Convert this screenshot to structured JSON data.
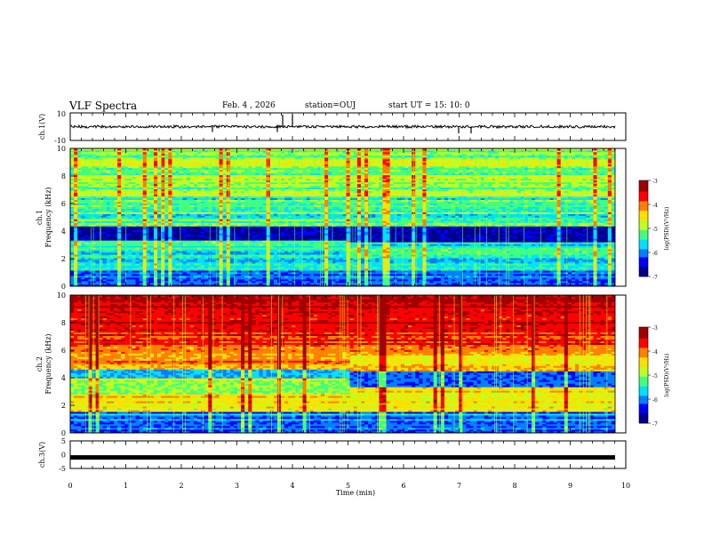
{
  "header": {
    "title": "VLF Spectra",
    "date": "Feb. 4 , 2026",
    "station": "station=OUJ",
    "start_ut": "start UT =  15: 10: 0"
  },
  "colors": {
    "waveform": "#000000",
    "colormap": [
      "#00008f",
      "#0000ff",
      "#0080ff",
      "#00e0ff",
      "#40ff80",
      "#c0ff20",
      "#ffe000",
      "#ff8000",
      "#ff0000",
      "#a00000"
    ]
  },
  "chart_data": [
    {
      "type": "line",
      "ylabel": "ch.1(V)",
      "ylim": [
        -10,
        10
      ],
      "yticks": [
        "10",
        "-10"
      ],
      "description_level": 0
    },
    {
      "type": "heatmap",
      "ylabel": "ch.1\nFrequency (kHz)",
      "xlim": [
        0,
        10
      ],
      "ylim": [
        0,
        10
      ],
      "yticks": [
        "0",
        "2",
        "4",
        "6",
        "8",
        "10"
      ],
      "colorbar": {
        "label": "log(PSD)(V²/Hz)",
        "ticks": [
          "-3",
          "-4",
          "-5",
          "-6",
          "-7"
        ],
        "range": [
          -7,
          -3
        ]
      }
    },
    {
      "type": "heatmap",
      "ylabel": "ch.2\nFrequency (kHz)",
      "xlim": [
        0,
        10
      ],
      "ylim": [
        0,
        10
      ],
      "yticks": [
        "0",
        "2",
        "4",
        "6",
        "8",
        "10"
      ],
      "colorbar": {
        "label": "log(PSD)(V²/Hz)",
        "ticks": [
          "-3",
          "-4",
          "-5",
          "-6",
          "-7"
        ],
        "range": [
          -7,
          -3
        ]
      }
    },
    {
      "type": "line",
      "ylabel": "ch.3(V)",
      "ylim": [
        -5,
        5
      ],
      "yticks": [
        "5",
        "0",
        "-5"
      ],
      "xlabel": "Time (min)",
      "xticks": [
        "0",
        "1",
        "2",
        "3",
        "4",
        "5",
        "6",
        "7",
        "8",
        "9",
        "10"
      ],
      "xlim": [
        0,
        10
      ],
      "level": -1
    }
  ]
}
